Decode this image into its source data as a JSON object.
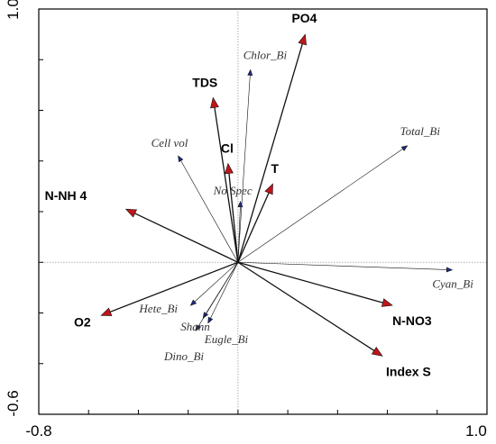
{
  "chart_data": {
    "type": "biplot",
    "xlim": [
      -0.8,
      1.0
    ],
    "ylim": [
      -0.6,
      1.0
    ],
    "x_tick_labels": [
      "-0.8",
      "1.0"
    ],
    "y_tick_labels": [
      "1.0",
      "-0.6"
    ],
    "environmental_vectors": [
      {
        "name": "PO4",
        "x": 0.27,
        "y": 0.9
      },
      {
        "name": "TDS",
        "x": -0.1,
        "y": 0.65
      },
      {
        "name": "Cl",
        "x": -0.04,
        "y": 0.39
      },
      {
        "name": "T",
        "x": 0.14,
        "y": 0.31
      },
      {
        "name": "N-NH 4",
        "x": -0.45,
        "y": 0.21
      },
      {
        "name": "O2",
        "x": -0.55,
        "y": -0.21
      },
      {
        "name": "N-NO3",
        "x": 0.62,
        "y": -0.17
      },
      {
        "name": "Index S",
        "x": 0.58,
        "y": -0.37
      }
    ],
    "species_vectors": [
      {
        "name": "Chlor_Bi",
        "x": 0.05,
        "y": 0.76
      },
      {
        "name": "Total_Bi",
        "x": 0.68,
        "y": 0.46
      },
      {
        "name": "Cell vol",
        "x": -0.24,
        "y": 0.42
      },
      {
        "name": "No Spec",
        "x": 0.01,
        "y": 0.24
      },
      {
        "name": "Cyan_Bi",
        "x": 0.86,
        "y": -0.03
      },
      {
        "name": "Hete_Bi",
        "x": -0.19,
        "y": -0.17
      },
      {
        "name": "Shann",
        "x": -0.14,
        "y": -0.22
      },
      {
        "name": "Eugle_Bi",
        "x": -0.12,
        "y": -0.24
      },
      {
        "name": "Dino_Bi",
        "x": -0.17,
        "y": -0.27
      }
    ],
    "env_arrow_color": "#c0151a",
    "species_arrow_color": "#1f2a8a",
    "grid": false
  }
}
